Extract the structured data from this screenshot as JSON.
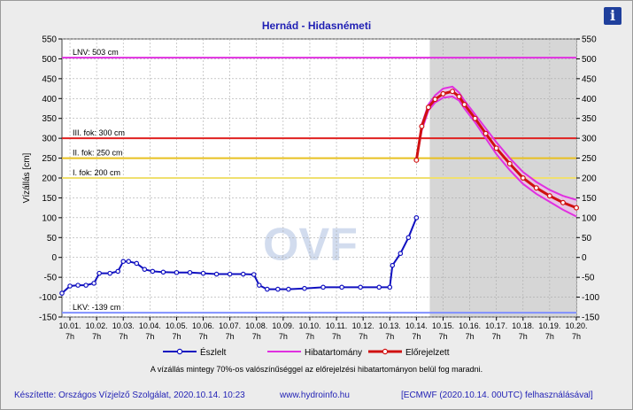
{
  "header": {
    "title": "Hernád - Hidasnémeti",
    "info_icon": "i"
  },
  "chart_data": {
    "type": "line",
    "ylabel": "Vízállás [cm]",
    "ylim": [
      -150,
      550
    ],
    "yticks": [
      -150,
      -100,
      -50,
      0,
      50,
      100,
      150,
      200,
      250,
      300,
      350,
      400,
      450,
      500,
      550
    ],
    "x_range_days": [
      9.7,
      19.7
    ],
    "x_ticks": [
      {
        "d": "10.01.",
        "h": "7h",
        "v": 10
      },
      {
        "d": "10.02.",
        "h": "7h",
        "v": 11
      },
      {
        "d": "10.03.",
        "h": "7h",
        "v": 12
      },
      {
        "d": "10.04.",
        "h": "7h",
        "v": 13
      },
      {
        "d": "10.05.",
        "h": "7h",
        "v": 14
      },
      {
        "d": "10.06.",
        "h": "7h",
        "v": 15
      },
      {
        "d": "10.07.",
        "h": "7h",
        "v": 16
      },
      {
        "d": "10.08.",
        "h": "7h",
        "v": 17
      },
      {
        "d": "10.09.",
        "h": "7h",
        "v": 18
      },
      {
        "d": "10.10.",
        "h": "7h",
        "v": 19
      },
      {
        "d": "10.11.",
        "h": "7h",
        "v": 20
      },
      {
        "d": "10.12.",
        "h": "7h",
        "v": 21
      },
      {
        "d": "10.13.",
        "h": "7h",
        "v": 22
      },
      {
        "d": "10.14.",
        "h": "7h",
        "v": 23
      },
      {
        "d": "10.15.",
        "h": "7h",
        "v": 24
      },
      {
        "d": "10.16.",
        "h": "7h",
        "v": 25
      },
      {
        "d": "10.17.",
        "h": "7h",
        "v": 26
      },
      {
        "d": "10.18.",
        "h": "7h",
        "v": 27
      },
      {
        "d": "10.19.",
        "h": "7h",
        "v": 28
      },
      {
        "d": "10.20.",
        "h": "7h",
        "v": 29
      }
    ],
    "forecast_shade_from": 23.5,
    "levels": [
      {
        "label": "LNV: 503 cm",
        "value": 503,
        "color": "#e030e0"
      },
      {
        "label": "III. fok: 300 cm",
        "value": 300,
        "color": "#e02020"
      },
      {
        "label": "II. fok: 250 cm",
        "value": 250,
        "color": "#e8c020"
      },
      {
        "label": "I. fok: 200 cm",
        "value": 200,
        "color": "#f0e070"
      },
      {
        "label": "LKV: -139 cm",
        "value": -139,
        "color": "#8090ff"
      }
    ],
    "series": [
      {
        "name": "Észlelt",
        "color": "#1010c0",
        "x": [
          9.7,
          10.0,
          10.3,
          10.6,
          10.9,
          11.1,
          11.5,
          11.8,
          12.0,
          12.2,
          12.5,
          12.8,
          13.1,
          13.5,
          14.0,
          14.5,
          15.0,
          15.5,
          16.0,
          16.5,
          16.9,
          17.1,
          17.4,
          17.8,
          18.2,
          18.8,
          19.5,
          20.2,
          20.9,
          21.6,
          22.0,
          22.1,
          22.4,
          22.7,
          23.0
        ],
        "y": [
          -90,
          -72,
          -70,
          -70,
          -65,
          -40,
          -40,
          -35,
          -10,
          -10,
          -15,
          -30,
          -35,
          -37,
          -38,
          -38,
          -40,
          -42,
          -42,
          -42,
          -43,
          -70,
          -80,
          -80,
          -80,
          -78,
          -75,
          -75,
          -75,
          -75,
          -75,
          -20,
          10,
          50,
          100
        ]
      },
      {
        "name": "Hibatartomány",
        "color": "#e030e0",
        "x_upper": [
          23.0,
          23.2,
          23.45,
          23.7,
          24.0,
          24.35,
          24.6,
          24.8,
          25.2,
          25.6,
          26.0,
          26.5,
          27.0,
          27.5,
          28.0,
          28.5,
          29.0
        ],
        "upper": [
          245,
          335,
          385,
          408,
          425,
          430,
          415,
          395,
          360,
          325,
          290,
          250,
          215,
          190,
          170,
          155,
          145
        ],
        "x_lower": [
          23.0,
          23.2,
          23.45,
          23.7,
          24.0,
          24.35,
          24.6,
          24.8,
          25.2,
          25.6,
          26.0,
          26.5,
          27.0,
          27.5,
          28.0,
          28.5,
          29.0
        ],
        "lower": [
          245,
          320,
          370,
          390,
          402,
          405,
          395,
          375,
          340,
          300,
          260,
          220,
          185,
          160,
          140,
          120,
          103
        ]
      },
      {
        "name": "Előrejelzett",
        "color": "#d01010",
        "x": [
          23.0,
          23.2,
          23.45,
          23.7,
          24.0,
          24.35,
          24.6,
          24.8,
          25.2,
          25.6,
          26.0,
          26.5,
          27.0,
          27.5,
          28.0,
          28.5,
          29.0
        ],
        "y": [
          245,
          330,
          378,
          398,
          412,
          418,
          405,
          385,
          350,
          312,
          275,
          236,
          200,
          175,
          155,
          138,
          125
        ]
      }
    ]
  },
  "note": "A vízállás mintegy 70%-os valószínűséggel az előrejelzési hibatartományon belül fog maradni.",
  "footer": {
    "left": "Készítette: Országos Vízjelző Szolgálat, 2020.10.14. 10:23",
    "middle": "www.hydroinfo.hu",
    "right": "[ECMWF (2020.10.14. 00UTC) felhasználásával]"
  },
  "watermark": {
    "text": "OVF",
    "color": "#c8d4ea"
  }
}
